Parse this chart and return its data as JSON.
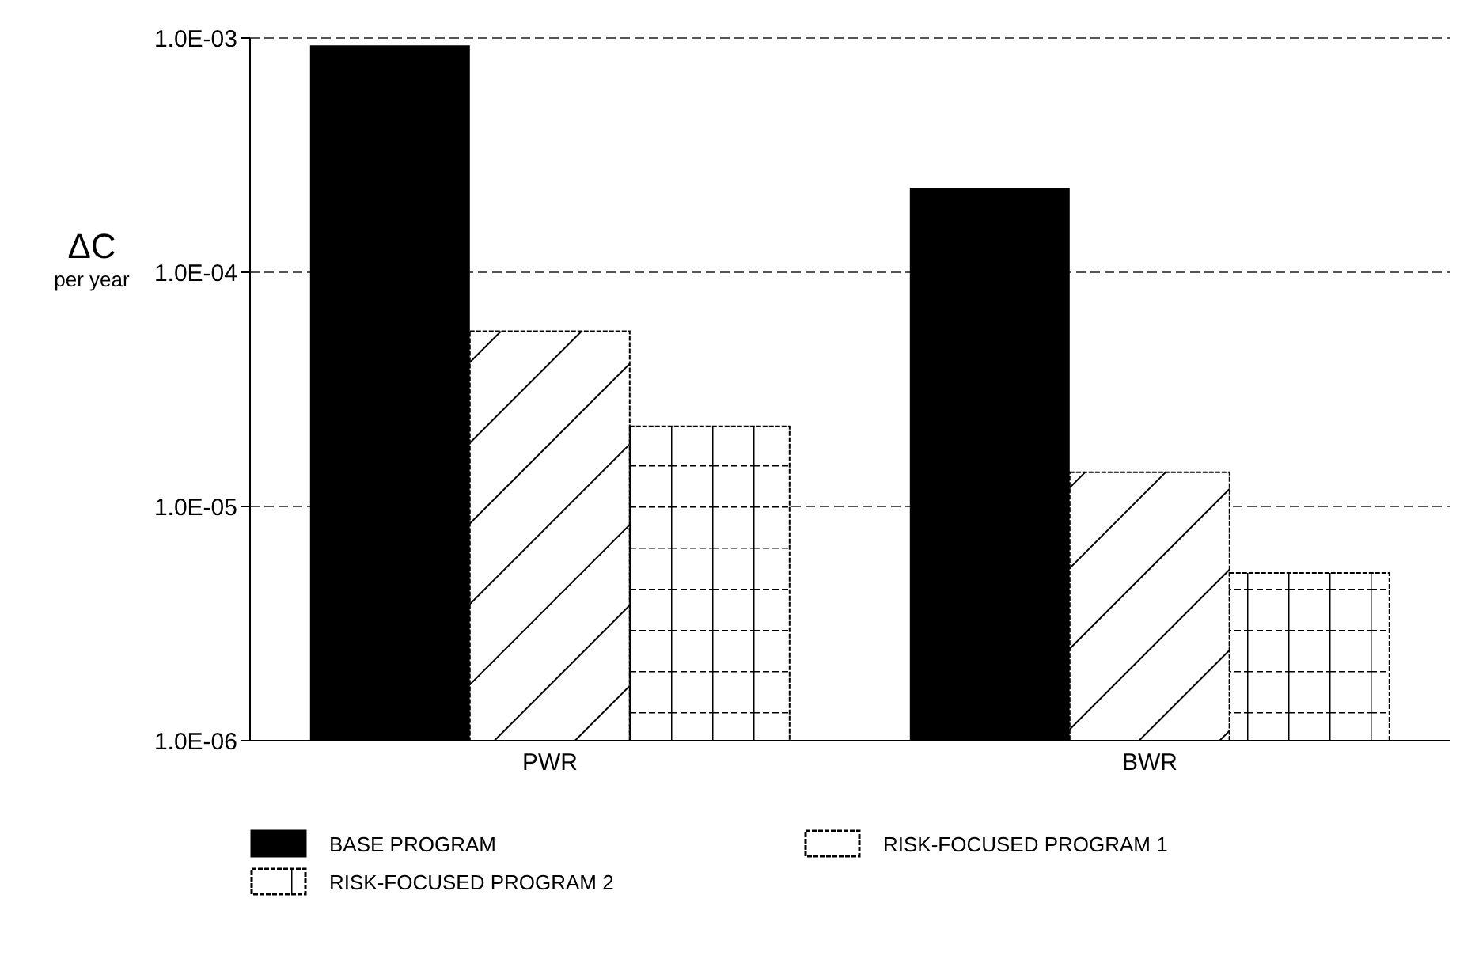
{
  "chart_data": {
    "type": "bar",
    "ylabel": "ΔC\nper year",
    "categories": [
      "PWR",
      "BWR"
    ],
    "series": [
      {
        "name": "BASE PROGRAM",
        "color": "#000000",
        "values": [
          0.00093,
          0.00023
        ]
      },
      {
        "name": "RISK-FOCUSED PROGRAM 1",
        "color": "#000000",
        "values": [
          5.6e-05,
          1.4e-05
        ]
      },
      {
        "name": "RISK-FOCUSED PROGRAM 2",
        "color": "#000000",
        "values": [
          2.2e-05,
          5.2e-06
        ]
      }
    ],
    "log": "y",
    "ylim": [
      1e-06,
      0.001
    ],
    "yticks": [
      {
        "value": 1e-06,
        "label": "1.0E-06"
      },
      {
        "value": 1e-05,
        "label": "1.0E-05"
      },
      {
        "value": 0.0001,
        "label": "1.0E-04"
      },
      {
        "value": 0.001,
        "label": "1.0E-03"
      }
    ],
    "grid": "y",
    "legend": "bottom"
  }
}
